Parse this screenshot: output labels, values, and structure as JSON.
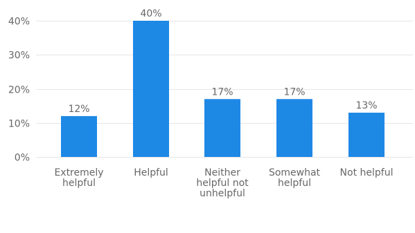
{
  "chart_data": {
    "type": "bar",
    "categories": [
      [
        "Extremely",
        "helpful"
      ],
      [
        "Helpful"
      ],
      [
        "Neither",
        "helpful not",
        "unhelpful"
      ],
      [
        "Somewhat",
        "helpful"
      ],
      [
        "Not helpful"
      ]
    ],
    "values": [
      12,
      40,
      17,
      17,
      13
    ],
    "value_labels": [
      "12%",
      "40%",
      "17%",
      "17%",
      "13%"
    ],
    "yticks": [
      0,
      10,
      20,
      30,
      40
    ],
    "ytick_labels": [
      "0%",
      "10%",
      "20%",
      "30%",
      "40%"
    ],
    "ylim": [
      0,
      40
    ],
    "grid": true,
    "bar_color": "#1e88e5",
    "title": "",
    "xlabel": "",
    "ylabel": ""
  }
}
